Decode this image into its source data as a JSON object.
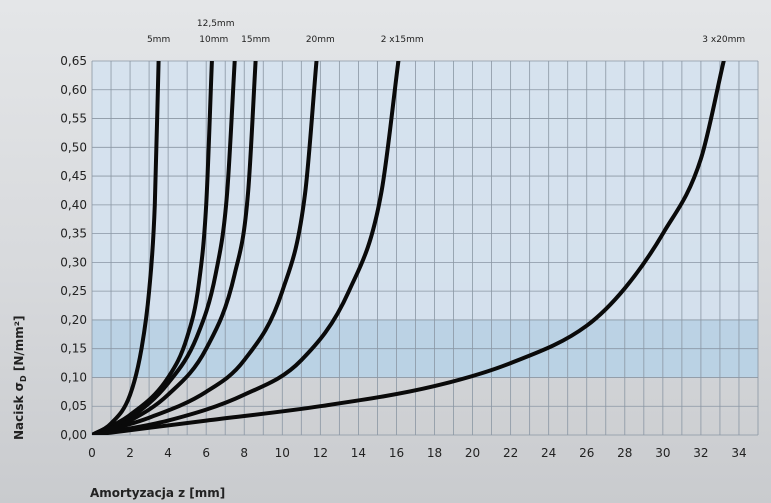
{
  "chart_data": {
    "type": "line",
    "xlabel": "Amortyzacja z [mm]",
    "ylabel": "Nacisk σ",
    "ylabel_subscript": "D",
    "ylabel_unit": " [N/mm²]",
    "xlim": [
      0,
      35
    ],
    "ylim": [
      0,
      0.65
    ],
    "x_ticks": [
      "0",
      "2",
      "4",
      "6",
      "8",
      "10",
      "12",
      "14",
      "16",
      "18",
      "20",
      "22",
      "24",
      "26",
      "28",
      "30",
      "32",
      "34"
    ],
    "y_ticks": [
      "0,00",
      "0,05",
      "0,10",
      "0,15",
      "0,20",
      "0,25",
      "0,30",
      "0,35",
      "0,40",
      "0,45",
      "0,50",
      "0,55",
      "0,60",
      "0,65"
    ],
    "grid": true,
    "highlight_bands": [
      {
        "y_from": 0.1,
        "y_to": 0.2,
        "color": "#b6d1e6"
      },
      {
        "y_from": 0.2,
        "y_to": 0.65,
        "color": "#d4e2f0"
      }
    ],
    "series": [
      {
        "name": "5mm",
        "x": [
          0,
          1,
          2,
          2.6,
          3.0,
          3.3,
          3.5
        ],
        "y": [
          0,
          0.02,
          0.07,
          0.15,
          0.25,
          0.4,
          0.65
        ]
      },
      {
        "name": "10mm",
        "x": [
          0,
          2,
          4,
          5,
          5.6,
          6.0,
          6.3
        ],
        "y": [
          0,
          0.035,
          0.1,
          0.17,
          0.26,
          0.4,
          0.65
        ]
      },
      {
        "name": "12,5mm",
        "x": [
          0,
          2,
          4,
          5.5,
          6.5,
          7.1,
          7.5
        ],
        "y": [
          0,
          0.03,
          0.09,
          0.17,
          0.28,
          0.42,
          0.65
        ]
      },
      {
        "name": "15mm",
        "x": [
          0,
          2,
          4,
          6,
          7.5,
          8.2,
          8.6
        ],
        "y": [
          0,
          0.025,
          0.07,
          0.15,
          0.28,
          0.42,
          0.65
        ]
      },
      {
        "name": "20mm",
        "x": [
          0,
          3,
          6,
          8,
          10,
          11.2,
          11.8
        ],
        "y": [
          0,
          0.03,
          0.075,
          0.13,
          0.25,
          0.42,
          0.65
        ]
      },
      {
        "name": "2x15mm",
        "x": [
          0,
          4,
          8,
          11,
          13.5,
          15.2,
          16.1
        ],
        "y": [
          0,
          0.025,
          0.07,
          0.13,
          0.25,
          0.42,
          0.65
        ]
      },
      {
        "name": "3x20mm",
        "x": [
          0,
          6,
          12,
          18,
          22,
          26,
          28,
          30,
          32,
          33.2
        ],
        "y": [
          0,
          0.025,
          0.05,
          0.085,
          0.125,
          0.19,
          0.255,
          0.35,
          0.48,
          0.65
        ]
      }
    ],
    "curve_labels": [
      {
        "text": "5mm",
        "x": 3.5,
        "row": 2
      },
      {
        "text": "12,5mm",
        "x": 6.5,
        "row": 1
      },
      {
        "text": "10mm",
        "x": 6.4,
        "row": 2
      },
      {
        "text": "15mm",
        "x": 8.6,
        "row": 2
      },
      {
        "text": "20mm",
        "x": 12.0,
        "row": 2
      },
      {
        "text": "2 x15mm",
        "x": 16.3,
        "row": 2
      },
      {
        "text": "3 x20mm",
        "x": 33.2,
        "row": 2
      }
    ]
  }
}
